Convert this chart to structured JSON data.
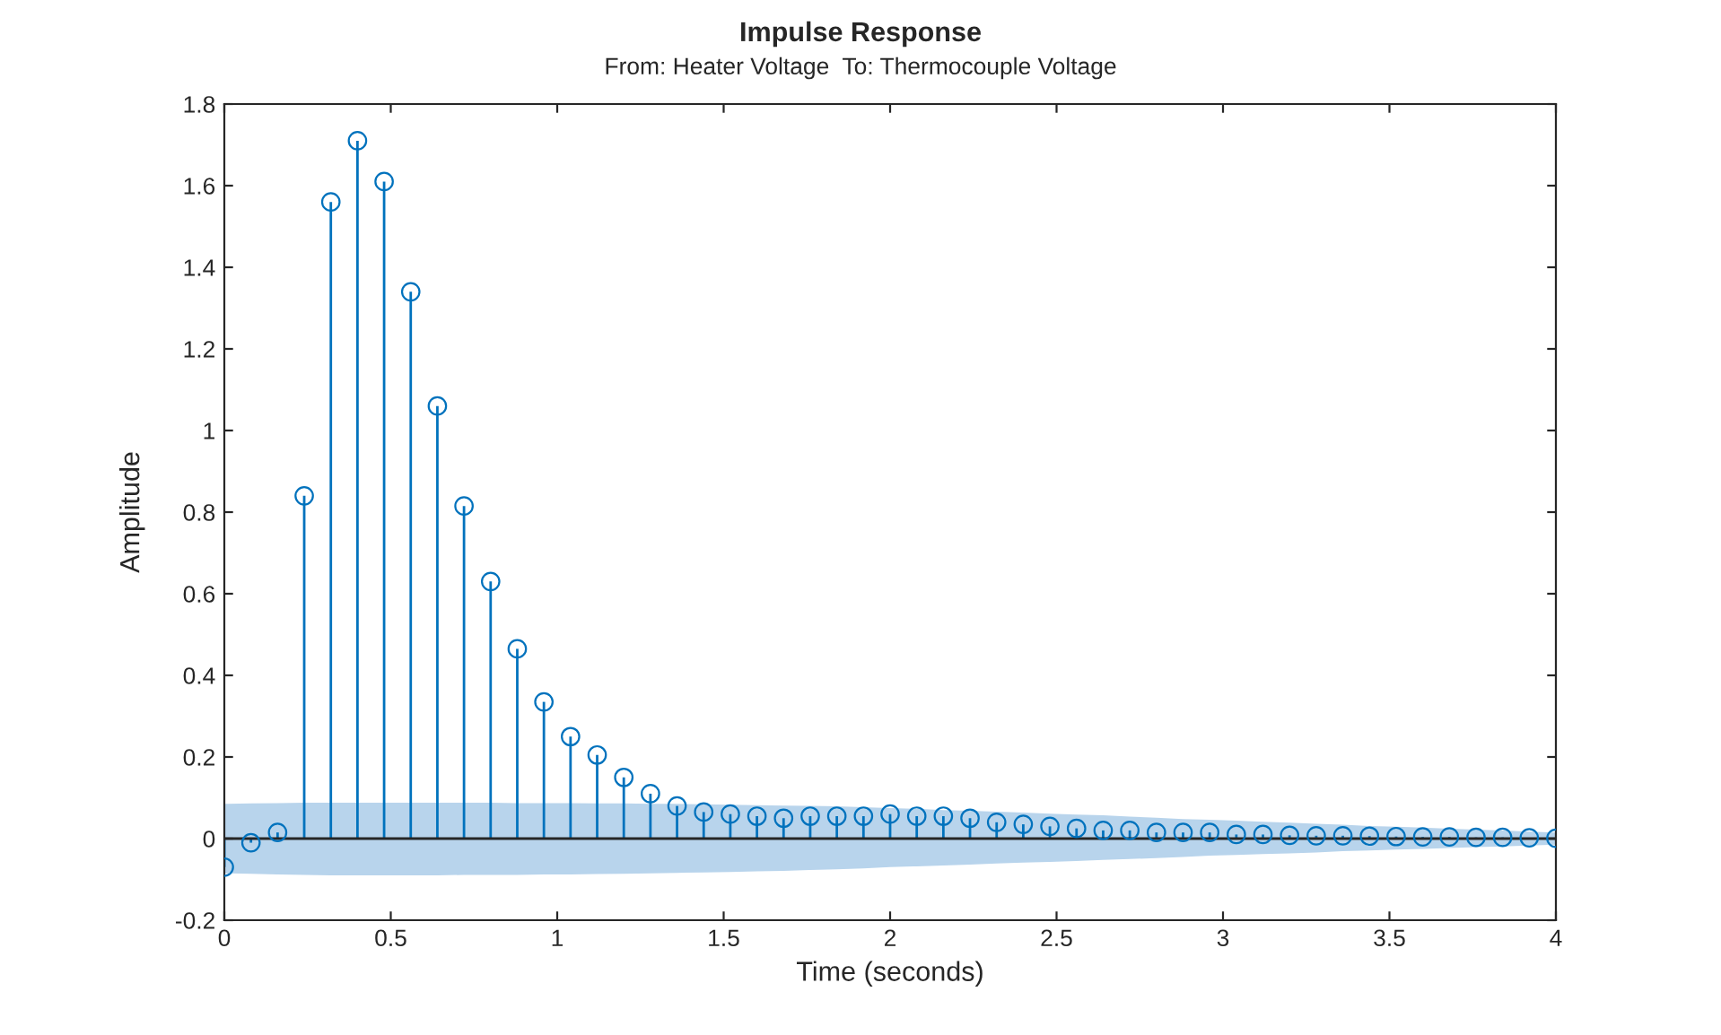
{
  "chart_data": {
    "type": "lollipop",
    "title": "Impulse Response",
    "subtitle": "From: Heater Voltage  To: Thermocouple Voltage",
    "xlabel": "Time (seconds)",
    "ylabel": "Amplitude",
    "xlim": [
      0,
      4
    ],
    "ylim": [
      -0.2,
      1.8
    ],
    "xticks": [
      0,
      0.5,
      1,
      1.5,
      2,
      2.5,
      3,
      3.5,
      4
    ],
    "yticks": [
      -0.2,
      0,
      0.2,
      0.4,
      0.6,
      0.8,
      1,
      1.2,
      1.4,
      1.6,
      1.8
    ],
    "grid": false,
    "marker": "circle",
    "ref_lines": [
      {
        "axis": "y",
        "value": 0,
        "color": "#262626"
      }
    ],
    "series": [
      {
        "color": "#0072bd",
        "x": [
          0,
          0.08,
          0.16,
          0.24,
          0.32,
          0.4,
          0.48,
          0.56,
          0.64,
          0.72,
          0.8,
          0.88,
          0.96,
          1.04,
          1.12,
          1.2,
          1.28,
          1.36,
          1.44,
          1.52,
          1.6,
          1.68,
          1.76,
          1.84,
          1.92,
          2,
          2.08,
          2.16,
          2.24,
          2.32,
          2.4,
          2.48,
          2.56,
          2.64,
          2.72,
          2.8,
          2.88,
          2.96,
          3.04,
          3.12,
          3.2,
          3.28,
          3.36,
          3.44,
          3.52,
          3.6,
          3.68,
          3.76,
          3.84,
          3.92,
          4
        ],
        "values": [
          -0.07,
          -0.01,
          0.015,
          0.84,
          1.56,
          1.71,
          1.61,
          1.34,
          1.06,
          0.815,
          0.63,
          0.465,
          0.335,
          0.25,
          0.205,
          0.15,
          0.11,
          0.08,
          0.065,
          0.06,
          0.055,
          0.05,
          0.055,
          0.055,
          0.055,
          0.06,
          0.055,
          0.055,
          0.05,
          0.04,
          0.035,
          0.03,
          0.025,
          0.02,
          0.02,
          0.015,
          0.015,
          0.015,
          0.01,
          0.01,
          0.008,
          0.007,
          0.007,
          0.006,
          0.005,
          0.004,
          0.004,
          0.003,
          0.003,
          0.002,
          0.001
        ],
        "upper": [
          0.085,
          0.086,
          0.087,
          0.088,
          0.088,
          0.088,
          0.088,
          0.088,
          0.088,
          0.088,
          0.088,
          0.087,
          0.087,
          0.087,
          0.086,
          0.086,
          0.085,
          0.085,
          0.084,
          0.083,
          0.082,
          0.081,
          0.08,
          0.079,
          0.077,
          0.075,
          0.073,
          0.07,
          0.068,
          0.066,
          0.064,
          0.061,
          0.059,
          0.057,
          0.054,
          0.051,
          0.048,
          0.046,
          0.044,
          0.041,
          0.039,
          0.036,
          0.034,
          0.031,
          0.029,
          0.027,
          0.024,
          0.022,
          0.02,
          0.017,
          0.015
        ],
        "lower": [
          -0.085,
          -0.086,
          -0.088,
          -0.089,
          -0.09,
          -0.09,
          -0.09,
          -0.09,
          -0.09,
          -0.089,
          -0.089,
          -0.089,
          -0.088,
          -0.088,
          -0.087,
          -0.086,
          -0.085,
          -0.084,
          -0.083,
          -0.082,
          -0.08,
          -0.079,
          -0.077,
          -0.075,
          -0.073,
          -0.07,
          -0.068,
          -0.066,
          -0.064,
          -0.061,
          -0.059,
          -0.057,
          -0.055,
          -0.052,
          -0.05,
          -0.048,
          -0.045,
          -0.042,
          -0.04,
          -0.038,
          -0.036,
          -0.034,
          -0.031,
          -0.029,
          -0.027,
          -0.025,
          -0.023,
          -0.021,
          -0.019,
          -0.017,
          -0.015
        ]
      }
    ]
  }
}
